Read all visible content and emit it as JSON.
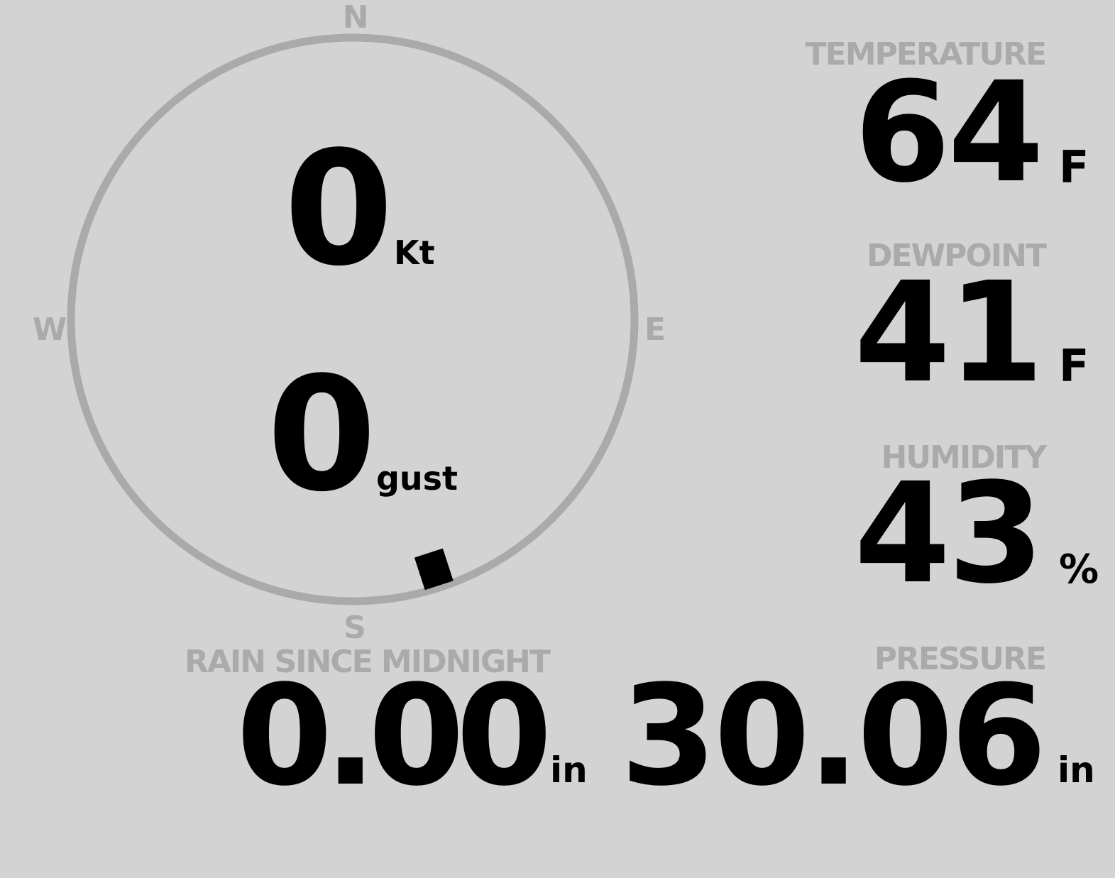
{
  "wind": {
    "speed": "0",
    "speed_unit": "Kt",
    "gust": "0",
    "gust_unit": "gust",
    "direction_deg": 162,
    "compass": {
      "n": "N",
      "e": "E",
      "s": "S",
      "w": "W"
    }
  },
  "temperature": {
    "label": "TEMPERATURE",
    "value": "64",
    "unit": "F"
  },
  "dewpoint": {
    "label": "DEWPOINT",
    "value": "41",
    "unit": "F"
  },
  "humidity": {
    "label": "HUMIDITY",
    "value": "43",
    "unit": "%"
  },
  "rain": {
    "label": "RAIN SINCE MIDNIGHT",
    "value": "0.00",
    "unit": "in"
  },
  "pressure": {
    "label": "PRESSURE",
    "value": "30.06",
    "unit": "in"
  },
  "colors": {
    "background": "#d3d3d3",
    "label": "#aaaaaa",
    "value": "#000000",
    "ring": "#aaaaaa"
  }
}
